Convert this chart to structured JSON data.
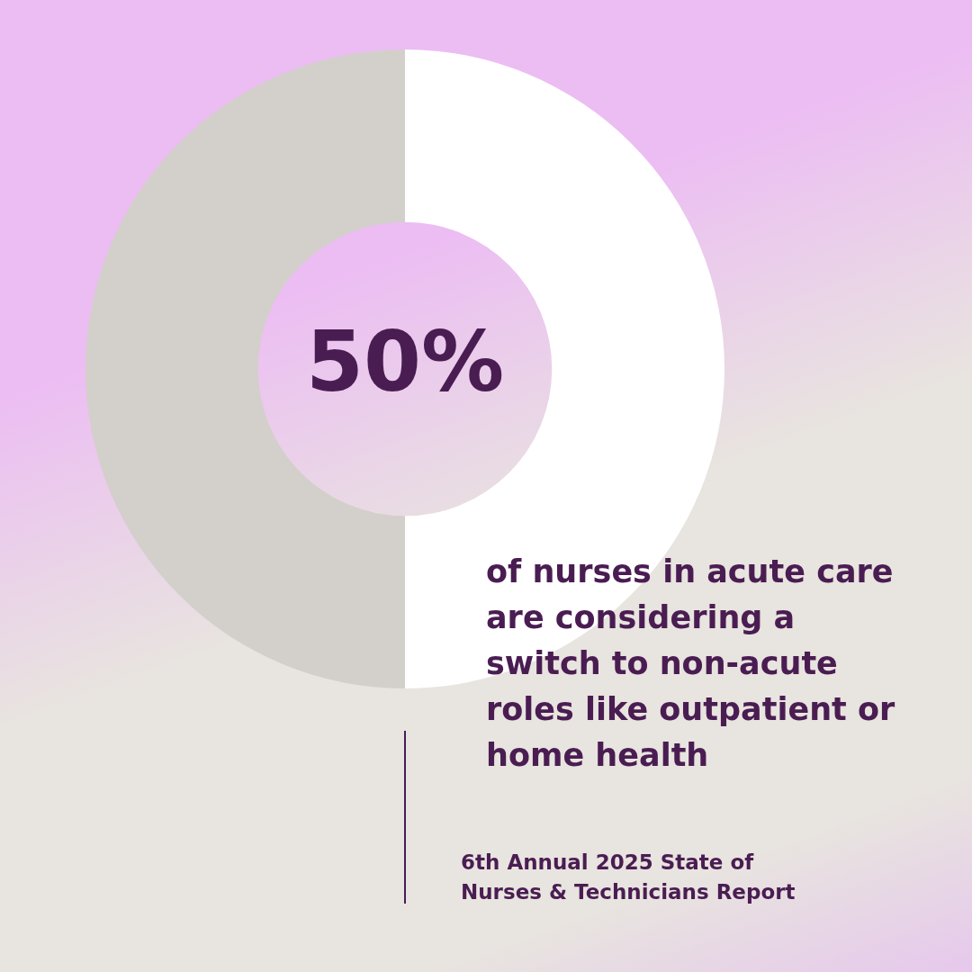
{
  "chart_data": {
    "type": "donut",
    "categories": [
      null,
      null
    ],
    "values": [
      50,
      50
    ],
    "colors": [
      "#ffffff",
      "#d3cfcb"
    ],
    "value_labels": [
      "50%",
      null
    ],
    "legend": false,
    "annotations": [
      "of nurses in acute care are considering a switch to non-acute roles like outpatient or home health",
      "6th Annual 2025 State of Nurses & Technicians Report"
    ]
  }
}
